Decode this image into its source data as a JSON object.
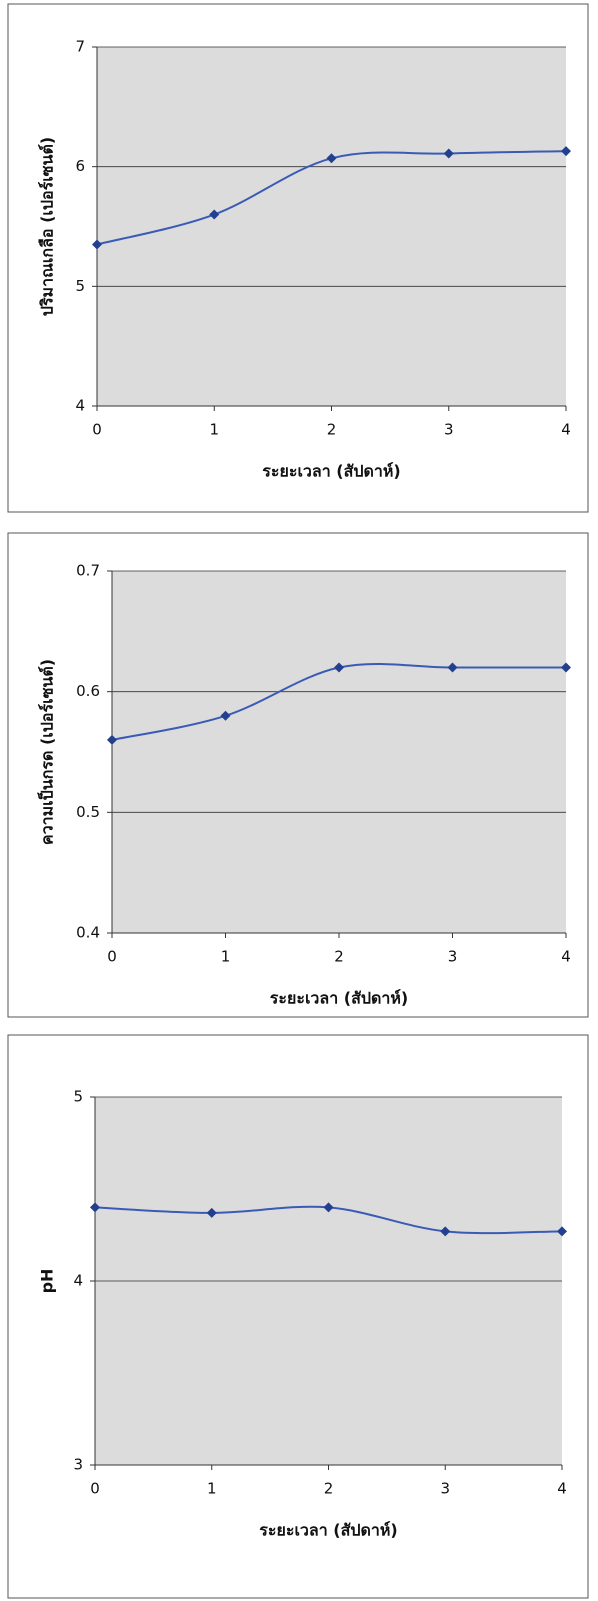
{
  "chart_data": [
    {
      "type": "line",
      "x": [
        0,
        1,
        2,
        3,
        4
      ],
      "xlim": [
        0,
        4
      ],
      "xticks": [
        0,
        1,
        2,
        3,
        4
      ],
      "x_label": "ระยะเวลา (สัปดาห์)",
      "y_label": "ปริมาณเกลือ (เปอร์เซนต์)",
      "ylim": [
        4,
        7
      ],
      "yticks": [
        4,
        5,
        6,
        7
      ],
      "grid": true,
      "series": [
        {
          "color": "#3a5bb5",
          "values": [
            5.35,
            5.6,
            6.07,
            6.11,
            6.13
          ]
        }
      ]
    },
    {
      "type": "line",
      "x": [
        0,
        1,
        2,
        3,
        4
      ],
      "xlim": [
        0,
        4
      ],
      "xticks": [
        0,
        1,
        2,
        3,
        4
      ],
      "x_label": "ระยะเวลา (สัปดาห์)",
      "y_label": "ความเป็นกรด (เปอร์เซนต์)",
      "ylim": [
        0.4,
        0.7
      ],
      "yticks": [
        0.4,
        0.5,
        0.6,
        0.7
      ],
      "grid": true,
      "series": [
        {
          "color": "#3a5bb5",
          "values": [
            0.56,
            0.58,
            0.62,
            0.62,
            0.62
          ]
        }
      ]
    },
    {
      "type": "line",
      "x": [
        0,
        1,
        2,
        3,
        4
      ],
      "xlim": [
        0,
        4
      ],
      "xticks": [
        0,
        1,
        2,
        3,
        4
      ],
      "x_label": "ระยะเวลา (สัปดาห์)",
      "y_label": "pH",
      "ylim": [
        3,
        5
      ],
      "yticks": [
        3,
        4,
        5
      ],
      "grid": true,
      "series": [
        {
          "color": "#3a5bb5",
          "values": [
            4.4,
            4.37,
            4.4,
            4.27,
            4.27
          ]
        }
      ]
    }
  ]
}
